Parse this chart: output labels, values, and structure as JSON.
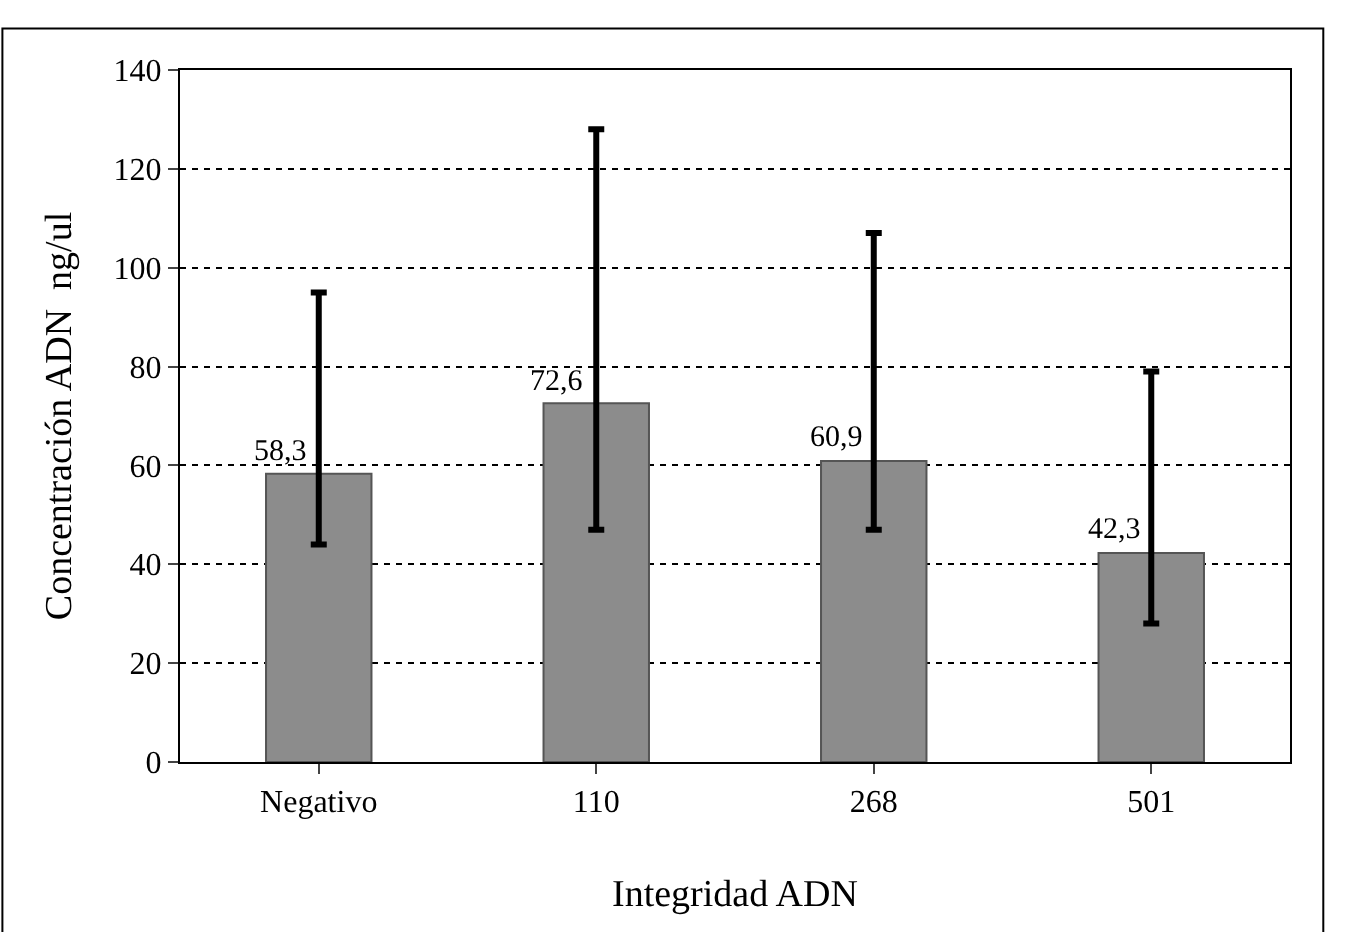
{
  "chart_data": {
    "type": "bar",
    "xlabel": "Integridad ADN",
    "ylabel": "Concentración ADN  ng/ul",
    "categories": [
      "Negativo",
      "110",
      "268",
      "501"
    ],
    "values": [
      58.3,
      72.6,
      60.9,
      42.3
    ],
    "value_labels": [
      "58,3",
      "72,6",
      "60,9",
      "42,3"
    ],
    "errors": [
      [
        44,
        95
      ],
      [
        47,
        128
      ],
      [
        47,
        107
      ],
      [
        28,
        79
      ]
    ],
    "color": "#8c8c8c",
    "ylim": [
      0,
      140
    ],
    "yticks": [
      0,
      20,
      40,
      60,
      80,
      100,
      120,
      140
    ],
    "grid": "y",
    "legend": false
  }
}
